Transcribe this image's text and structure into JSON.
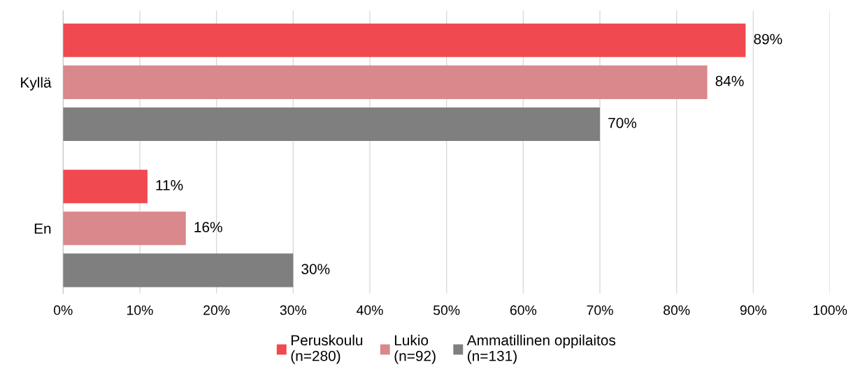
{
  "chart_data": {
    "type": "bar",
    "orientation": "horizontal",
    "categories": [
      "Kyllä",
      "En"
    ],
    "series": [
      {
        "name": "Peruskoulu\n(n=280)",
        "color": "#f0494f",
        "values": [
          89,
          11
        ],
        "value_labels": [
          "89%",
          "11%"
        ]
      },
      {
        "name": "Lukio\n(n=92)",
        "color": "#d9888c",
        "values": [
          84,
          16
        ],
        "value_labels": [
          "84%",
          "16%"
        ]
      },
      {
        "name": "Ammatillinen oppilaitos\n(n=131)",
        "color": "#7f7f7f",
        "values": [
          70,
          30
        ],
        "value_labels": [
          "70%",
          "30%"
        ]
      }
    ],
    "xlim": [
      0,
      100
    ],
    "xticks": [
      {
        "value": 0,
        "label": "0%"
      },
      {
        "value": 10,
        "label": "10%"
      },
      {
        "value": 20,
        "label": "20%"
      },
      {
        "value": 30,
        "label": "30%"
      },
      {
        "value": 40,
        "label": "40%"
      },
      {
        "value": 50,
        "label": "50%"
      },
      {
        "value": 60,
        "label": "60%"
      },
      {
        "value": 70,
        "label": "70%"
      },
      {
        "value": 80,
        "label": "80%"
      },
      {
        "value": 90,
        "label": "90%"
      },
      {
        "value": 100,
        "label": "100%"
      }
    ],
    "grid": "x",
    "legend": "bottom"
  }
}
